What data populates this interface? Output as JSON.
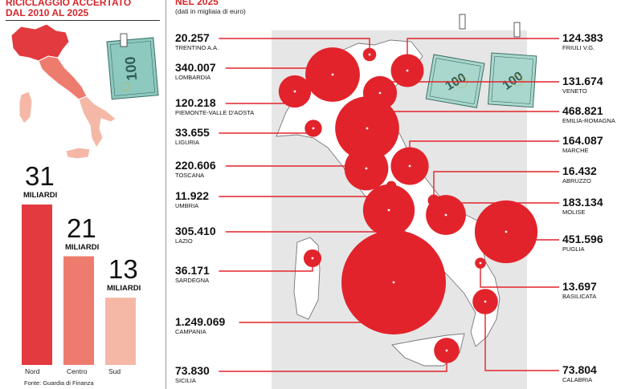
{
  "left_panel": {
    "title_line1": "RICICLAGGIO ACCERTATO",
    "title_line2": "DAL 2010 AL 2025",
    "source": "Fonte: Guardia di Finanza"
  },
  "right_panel": {
    "title": "NEL 2025",
    "unit_note": "(dati in migliaia di euro)"
  },
  "colors": {
    "accent": "#d7262b",
    "bar_nord": "#e23a3f",
    "bar_centro": "#ee7c6e",
    "bar_sud": "#f5b8a6",
    "map_bg": "#e6e6e6",
    "bubble": "#e2232b"
  },
  "chart_data": [
    {
      "type": "bar",
      "categories": [
        "Nord",
        "Centro",
        "Sud"
      ],
      "values": [
        31,
        21,
        13
      ],
      "value_unit": "MILIARDI",
      "ylim": [
        0,
        31
      ],
      "grid": false,
      "legend": "none"
    },
    {
      "type": "scatter",
      "subtype": "bubble-map",
      "regions": [
        {
          "name": "TRENTINO A.A.",
          "value": 20257,
          "label": "20.257",
          "side": "left"
        },
        {
          "name": "LOMBARDIA",
          "value": 340007,
          "label": "340.007",
          "side": "left"
        },
        {
          "name": "PIEMONTE-VALLE D'AOSTA",
          "value": 120218,
          "label": "120.218",
          "side": "left"
        },
        {
          "name": "LIGURIA",
          "value": 33655,
          "label": "33.655",
          "side": "left"
        },
        {
          "name": "TOSCANA",
          "value": 220606,
          "label": "220.606",
          "side": "left"
        },
        {
          "name": "UMBRIA",
          "value": 11922,
          "label": "11.922",
          "side": "left"
        },
        {
          "name": "LAZIO",
          "value": 305410,
          "label": "305.410",
          "side": "left"
        },
        {
          "name": "SARDEGNA",
          "value": 36171,
          "label": "36.171",
          "side": "left"
        },
        {
          "name": "CAMPANIA",
          "value": 1249069,
          "label": "1.249.069",
          "side": "left"
        },
        {
          "name": "SICILIA",
          "value": 73830,
          "label": "73.830",
          "side": "left"
        },
        {
          "name": "FRIULI V.G.",
          "value": 124383,
          "label": "124.383",
          "side": "right"
        },
        {
          "name": "VENETO",
          "value": 131674,
          "label": "131.674",
          "side": "right"
        },
        {
          "name": "EMILIA-ROMAGNA",
          "value": 468821,
          "label": "468.821",
          "side": "right"
        },
        {
          "name": "MARCHE",
          "value": 164087,
          "label": "164.087",
          "side": "right"
        },
        {
          "name": "ABRUZZO",
          "value": 16432,
          "label": "16.432",
          "side": "right"
        },
        {
          "name": "MOLISE",
          "value": 183134,
          "label": "183.134",
          "side": "right"
        },
        {
          "name": "PUGLIA",
          "value": 451596,
          "label": "451.596",
          "side": "right"
        },
        {
          "name": "BASILICATA",
          "value": 13697,
          "label": "13.697",
          "side": "right"
        },
        {
          "name": "CALABRIA",
          "value": 73804,
          "label": "73.804",
          "side": "right"
        }
      ],
      "grid": false,
      "legend": "none"
    }
  ]
}
